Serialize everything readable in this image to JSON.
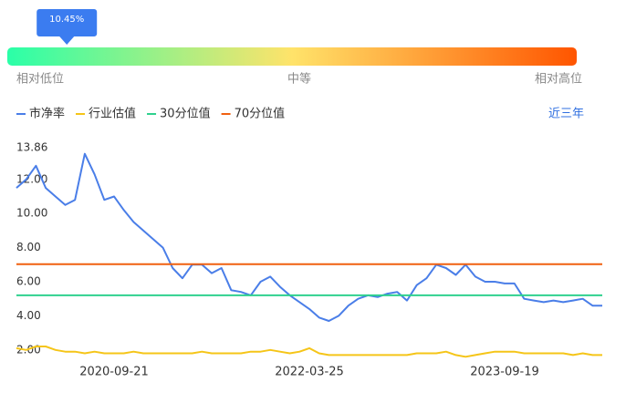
{
  "chart_data": {
    "type": "line",
    "percentile": {
      "value": 10.45,
      "label": "10.45%"
    },
    "scale_labels": [
      "相对低位",
      "中等",
      "相对高位"
    ],
    "range_label": "近三年",
    "categories": [
      null,
      null,
      null,
      null,
      null,
      null,
      null,
      null,
      null,
      null,
      "2020-09-21",
      null,
      null,
      null,
      null,
      null,
      null,
      null,
      null,
      null,
      null,
      null,
      null,
      null,
      null,
      null,
      null,
      null,
      null,
      null,
      "2022-03-25",
      null,
      null,
      null,
      null,
      null,
      null,
      null,
      null,
      null,
      null,
      null,
      null,
      null,
      null,
      null,
      null,
      null,
      null,
      null,
      "2023-09-19",
      null,
      null,
      null,
      null,
      null,
      null,
      null,
      null,
      null,
      null
    ],
    "series": [
      {
        "name": "市净率",
        "color": "#4a7ee8",
        "values": [
          11.5,
          12.0,
          12.8,
          11.5,
          11.0,
          10.5,
          10.8,
          13.5,
          12.3,
          10.8,
          11.0,
          10.2,
          9.5,
          9.0,
          8.5,
          8.0,
          6.8,
          6.2,
          7.0,
          7.0,
          6.5,
          6.8,
          5.5,
          5.4,
          5.2,
          6.0,
          6.3,
          5.7,
          5.2,
          4.8,
          4.4,
          3.9,
          3.7,
          4.0,
          4.6,
          5.0,
          5.2,
          5.1,
          5.3,
          5.4,
          4.9,
          5.8,
          6.2,
          7.0,
          6.8,
          6.4,
          7.0,
          6.3,
          6.0,
          6.0,
          5.9,
          5.9,
          5.0,
          4.9,
          4.8,
          4.9,
          4.8,
          4.9,
          5.0,
          4.6,
          4.6
        ]
      },
      {
        "name": "行业估值",
        "color": "#f5c518",
        "values": [
          2.1,
          2.0,
          2.2,
          2.2,
          2.0,
          1.9,
          1.9,
          1.8,
          1.9,
          1.8,
          1.8,
          1.8,
          1.9,
          1.8,
          1.8,
          1.8,
          1.8,
          1.8,
          1.8,
          1.9,
          1.8,
          1.8,
          1.8,
          1.8,
          1.9,
          1.9,
          2.0,
          1.9,
          1.8,
          1.9,
          2.1,
          1.8,
          1.7,
          1.7,
          1.7,
          1.7,
          1.7,
          1.7,
          1.7,
          1.7,
          1.7,
          1.8,
          1.8,
          1.8,
          1.9,
          1.7,
          1.6,
          1.7,
          1.8,
          1.9,
          1.9,
          1.9,
          1.8,
          1.8,
          1.8,
          1.8,
          1.8,
          1.7,
          1.8,
          1.7,
          1.7
        ]
      },
      {
        "name": "30分位值",
        "color": "#2fd18e",
        "values": [
          5.2,
          5.2,
          5.2,
          5.2,
          5.2,
          5.2,
          5.2,
          5.2,
          5.2,
          5.2,
          5.2,
          5.2,
          5.2,
          5.2,
          5.2,
          5.2,
          5.2,
          5.2,
          5.2,
          5.2,
          5.2,
          5.2,
          5.2,
          5.2,
          5.2,
          5.2,
          5.2,
          5.2,
          5.2,
          5.2,
          5.2,
          5.2,
          5.2,
          5.2,
          5.2,
          5.2,
          5.2,
          5.2,
          5.2,
          5.2,
          5.2,
          5.2,
          5.2,
          5.2,
          5.2,
          5.2,
          5.2,
          5.2,
          5.2,
          5.2,
          5.2,
          5.2,
          5.2,
          5.2,
          5.2,
          5.2,
          5.2,
          5.2,
          5.2,
          5.2,
          5.2
        ]
      },
      {
        "name": "70分位值",
        "color": "#f06010",
        "values": [
          7.03,
          7.03,
          7.03,
          7.03,
          7.03,
          7.03,
          7.03,
          7.03,
          7.03,
          7.03,
          7.03,
          7.03,
          7.03,
          7.03,
          7.03,
          7.03,
          7.03,
          7.03,
          7.03,
          7.03,
          7.03,
          7.03,
          7.03,
          7.03,
          7.03,
          7.03,
          7.03,
          7.03,
          7.03,
          7.03,
          7.03,
          7.03,
          7.03,
          7.03,
          7.03,
          7.03,
          7.03,
          7.03,
          7.03,
          7.03,
          7.03,
          7.03,
          7.03,
          7.03,
          7.03,
          7.03,
          7.03,
          7.03,
          7.03,
          7.03,
          7.03,
          7.03,
          7.03,
          7.03,
          7.03,
          7.03,
          7.03,
          7.03,
          7.03,
          7.03,
          7.03
        ]
      }
    ],
    "ylim": [
      1.4,
      13.86
    ],
    "yticks": [
      {
        "value": 2,
        "label": "2.00"
      },
      {
        "value": 4,
        "label": "4.00"
      },
      {
        "value": 6,
        "label": "6.00"
      },
      {
        "value": 8,
        "label": "8.00"
      },
      {
        "value": 10,
        "label": "10.00"
      },
      {
        "value": 12,
        "label": "12.00"
      },
      13.86
    ]
  }
}
